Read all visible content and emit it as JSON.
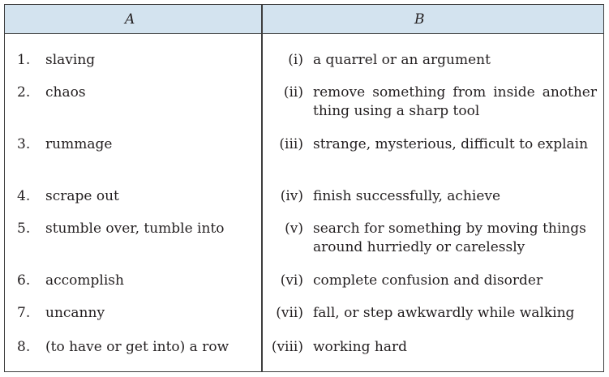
{
  "headers": {
    "col_a": "A",
    "col_b": "B"
  },
  "rows": [
    {
      "num": "1.",
      "term": "slaving",
      "roman": "(i)",
      "meaning": "a quarrel or an argument"
    },
    {
      "num": "2.",
      "term": "chaos",
      "roman": "(ii)",
      "meaning": "remove something from inside another thing using a sharp tool"
    },
    {
      "num": "3.",
      "term": "rummage",
      "roman": "(iii)",
      "meaning": "strange, mysterious, difficult to explain"
    },
    {
      "num": "4.",
      "term": "scrape out",
      "roman": "(iv)",
      "meaning": "finish successfully, achieve"
    },
    {
      "num": "5.",
      "term": "stumble over, tumble into",
      "roman": "(v)",
      "meaning": "search for something by moving things around hurriedly or carelessly"
    },
    {
      "num": "6.",
      "term": "accomplish",
      "roman": "(vi)",
      "meaning": "complete confusion and disorder"
    },
    {
      "num": "7.",
      "term": "uncanny",
      "roman": "(vii)",
      "meaning": "fall, or step awkwardly while walking"
    },
    {
      "num": "8.",
      "term": "(to have or get into) a row",
      "roman": "(viii)",
      "meaning": "working hard"
    }
  ]
}
